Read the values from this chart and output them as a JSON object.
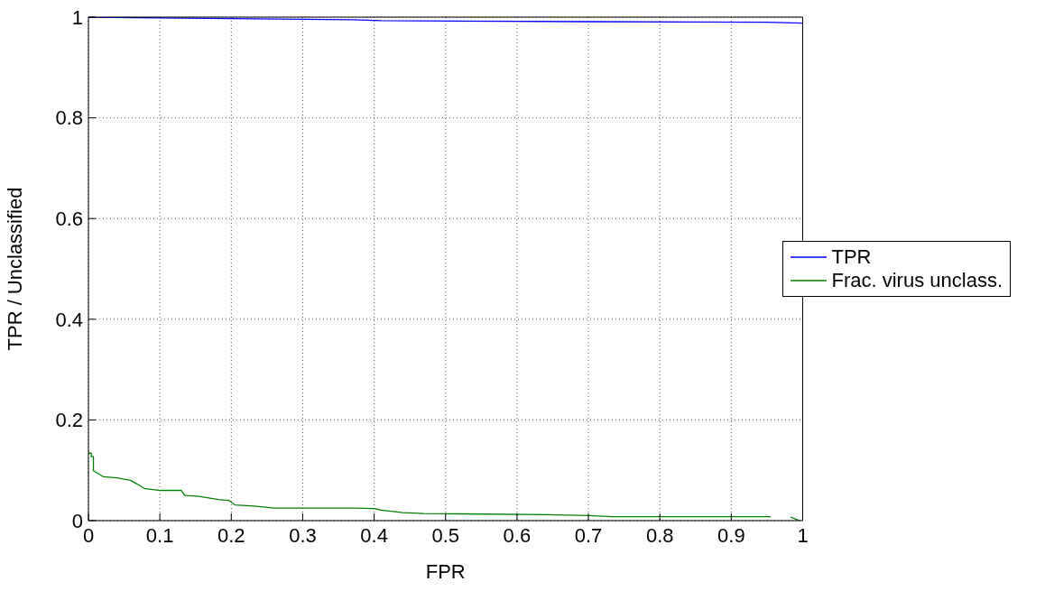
{
  "chart_data": {
    "type": "line",
    "xlabel": "FPR",
    "ylabel": "TPR / Unclassified",
    "xlim": [
      0,
      1
    ],
    "ylim": [
      0,
      1
    ],
    "xticks": [
      0,
      0.1,
      0.2,
      0.3,
      0.4,
      0.5,
      0.6,
      0.7,
      0.8,
      0.9,
      1
    ],
    "yticks": [
      0,
      0.2,
      0.4,
      0.6,
      0.8,
      1
    ],
    "grid": true,
    "legend": "right",
    "marker": "none",
    "line_style": "solid",
    "series": [
      {
        "name": "TPR",
        "color": "#0000ff",
        "x": [
          0,
          0.2,
          0.37,
          0.41,
          0.7,
          0.95,
          1
        ],
        "values": [
          1,
          0.997,
          0.995,
          0.993,
          0.991,
          0.99,
          0.988
        ]
      },
      {
        "name": "Frac. virus unclass.",
        "color": "#008000",
        "x": [
          0,
          0.004,
          0.004,
          0.007,
          0.007,
          0.012,
          0.021,
          0.04,
          0.059,
          0.069,
          0.078,
          0.1,
          0.13,
          0.135,
          0.155,
          0.182,
          0.197,
          0.205,
          0.232,
          0.26,
          0.37,
          0.4,
          0.41,
          0.44,
          0.47,
          0.64,
          0.7,
          0.735,
          0.955,
          0.97,
          0.983,
          0.996
        ],
        "values": [
          0.134,
          0.134,
          0.127,
          0.127,
          0.099,
          0.095,
          0.087,
          0.085,
          0.08,
          0.072,
          0.064,
          0.06,
          0.06,
          0.05,
          0.048,
          0.042,
          0.04,
          0.031,
          0.029,
          0.025,
          0.025,
          0.024,
          0.021,
          0.016,
          0.014,
          0.012,
          0.01,
          0.008,
          0.008,
          null,
          0.007,
          0
        ]
      }
    ]
  }
}
